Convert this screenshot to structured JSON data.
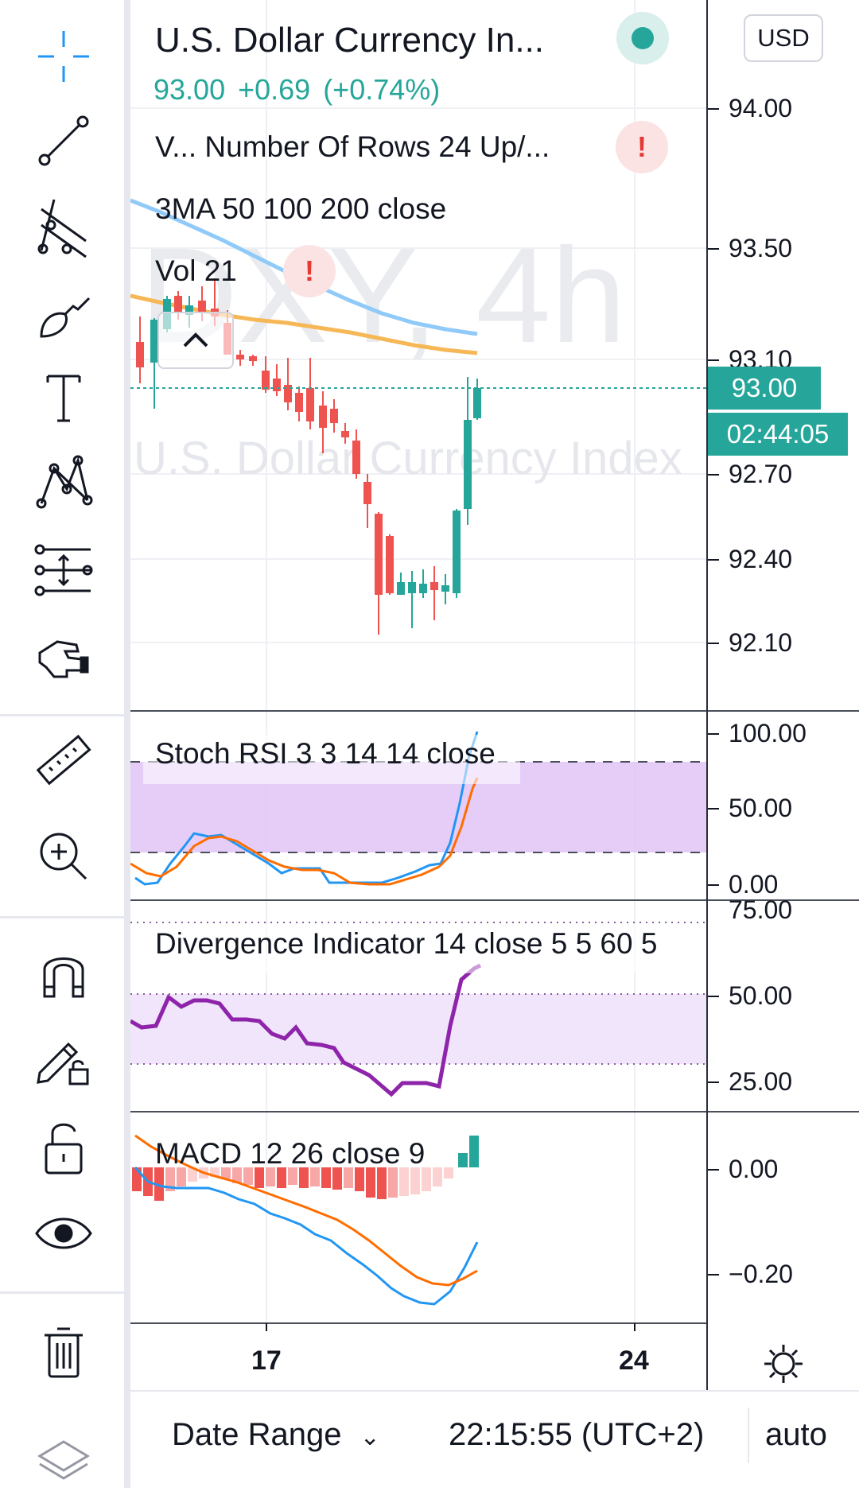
{
  "symbol": {
    "title": "U.S. Dollar Currency In...",
    "price": "93.00",
    "change": "+0.69",
    "change_pct": "(+0.74%)",
    "currency": "USD",
    "watermark_ticker": "DXY, 4h",
    "watermark_name": "U.S. Dollar Currency Index"
  },
  "indicators": {
    "vrvp": "V... Number Of Rows 24 Up/...",
    "ma": "3MA 50 100 200 close",
    "vol": "Vol 21",
    "stoch": "Stoch RSI 3 3 14 14 close",
    "divergence": "Divergence Indicator 14 close 5 5 60 5",
    "macd": "MACD 12 26 close 9"
  },
  "price_axis": {
    "labels": [
      "94.00",
      "93.50",
      "93.10",
      "92.70",
      "92.40",
      "92.10"
    ],
    "last_price": "93.00",
    "countdown": "02:44:05"
  },
  "stoch_axis": [
    "100.00",
    "50.00",
    "0.00"
  ],
  "divergence_axis": [
    "75.00",
    "50.00",
    "25.00"
  ],
  "macd_axis": [
    "0.00",
    "−0.20"
  ],
  "date_axis": [
    "17",
    "24"
  ],
  "bottom_bar": {
    "date_range": "Date Range",
    "time": "22:15:55 (UTC+2)",
    "scale": "auto"
  },
  "toolbar": [
    "crosshair-tool",
    "trend-line-tool",
    "fib-tool",
    "brush-tool",
    "text-tool",
    "pattern-tool",
    "prediction-tool",
    "hand-pointer",
    "ruler-tool",
    "zoom-in-tool",
    "magnet-tool",
    "drawing-lock-tool",
    "lock-tool",
    "eye-tool",
    "trash-tool",
    "layers-tool"
  ],
  "colors": {
    "up": "#26a69a",
    "down": "#ef5350",
    "ma_blue": "#90caf9",
    "ma_orange": "#f6b756",
    "stoch_k": "#2196f3",
    "stoch_d": "#ff6d00",
    "divergence": "#9c27b0",
    "macd": "#2196f3",
    "signal": "#ff6d00"
  }
}
